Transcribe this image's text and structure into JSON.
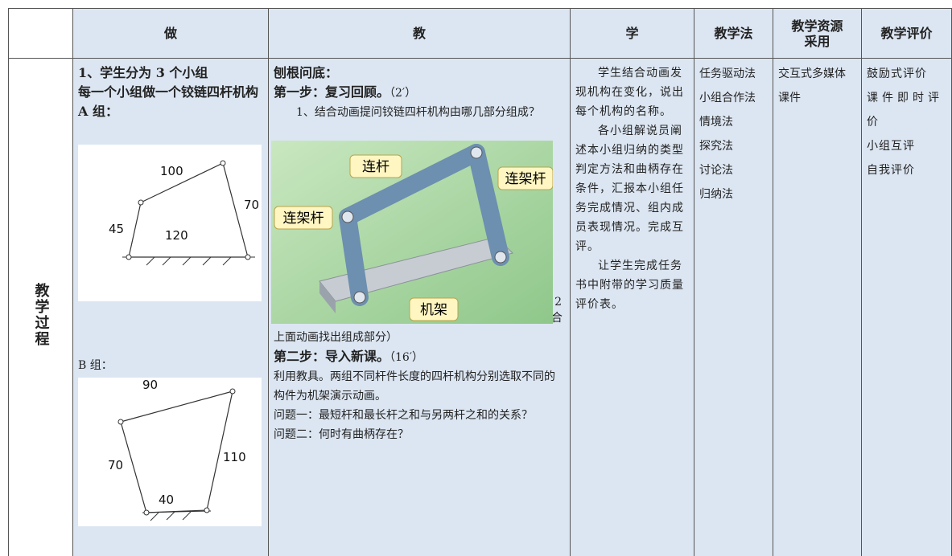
{
  "header": {
    "cells": [
      "做",
      "教",
      "学",
      "教学法",
      "教学资源采用",
      "教学评价"
    ]
  },
  "row_label": "教学过程",
  "do": {
    "lines": [
      "1、学生分为 3 个小组",
      "每一个小组做一个铰链四杆机构"
    ],
    "group_a": {
      "label": "A 组：",
      "sides": [
        "100",
        "70",
        "45",
        "120"
      ]
    },
    "group_b": {
      "label": "B 组：",
      "sides": [
        "90",
        "110",
        "70",
        "40"
      ]
    }
  },
  "teach": {
    "heading": "刨根问底：",
    "step1": {
      "title": "第一步：复习回顾。",
      "time": "（2′）"
    },
    "q1": "1、结合动画提问铰链四杆机构由哪几部分组成？",
    "figure": {
      "labels": [
        "连杆",
        "连架杆",
        "连架杆",
        "机架"
      ],
      "number": "2"
    },
    "q2": "2、你能找出雷达天线中的机架、连架杆、连杆吗？（结合上面动画找出组成部分）",
    "step2": {
      "title": "第二步：导入新课。",
      "time": "（16′）"
    },
    "lines": [
      "利用教具。两组不同杆件长度的四杆机构分别选取不同的构件为机架演示动画。",
      "问题一：最短杆和最长杆之和与另两杆之和的关系？",
      "问题二：何时有曲柄存在？"
    ]
  },
  "learn": [
    "学生结合动画发现机构在变化，说出每个机构的名称。",
    "各小组解说员阐述本小组归纳的类型判定方法和曲柄存在条件，汇报本小组任务完成情况、组内成员表现情况。完成互评。",
    "让学生完成任务书中附带的学习质量评价表。"
  ],
  "methods": [
    "任务驱动法",
    "小组合作法",
    "情境法",
    "探究法",
    "讨论法",
    "归纳法"
  ],
  "resources": "交互式多媒体课件",
  "evaluation": [
    "鼓励式评价",
    "课件即时评价",
    "小组互评",
    "自我评价"
  ]
}
